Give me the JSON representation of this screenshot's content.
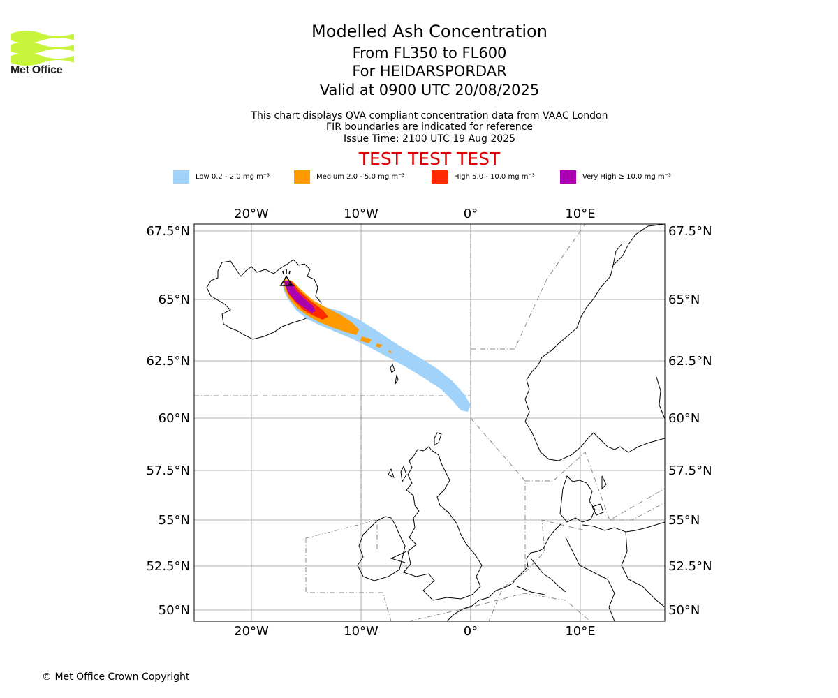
{
  "header": {
    "logo_text": "Met Office",
    "title": "Modelled Ash Concentration",
    "level_range": "From FL350 to FL600",
    "volcano": "For HEIDARSPORDAR",
    "valid_time": "Valid at 0900 UTC 20/08/2025",
    "note1": "This chart displays QVA compliant concentration data from VAAC London",
    "note2": "FIR boundaries are indicated for reference",
    "issue_time": "Issue Time: 2100 UTC 19 Aug 2025",
    "test_banner": "TEST TEST TEST"
  },
  "legend": [
    {
      "label": "Low 0.2 - 2.0 mg m⁻³",
      "color": "#a0d2fa"
    },
    {
      "label": "Medium 2.0 - 5.0 mg m⁻³",
      "color": "#ff9a00"
    },
    {
      "label": "High 5.0 - 10.0 mg m⁻³",
      "color": "#ff2a00"
    },
    {
      "label": "Very High ≥ 10.0 mg m⁻³",
      "color": "#aa00b0"
    }
  ],
  "map": {
    "lon_labels": [
      "20°W",
      "10°W",
      "0°",
      "10°E"
    ],
    "lat_labels": [
      "67.5°N",
      "65°N",
      "62.5°N",
      "60°N",
      "57.5°N",
      "55°N",
      "52.5°N",
      "50°N"
    ]
  },
  "footer": {
    "copyright": "© Met Office Crown Copyright"
  }
}
